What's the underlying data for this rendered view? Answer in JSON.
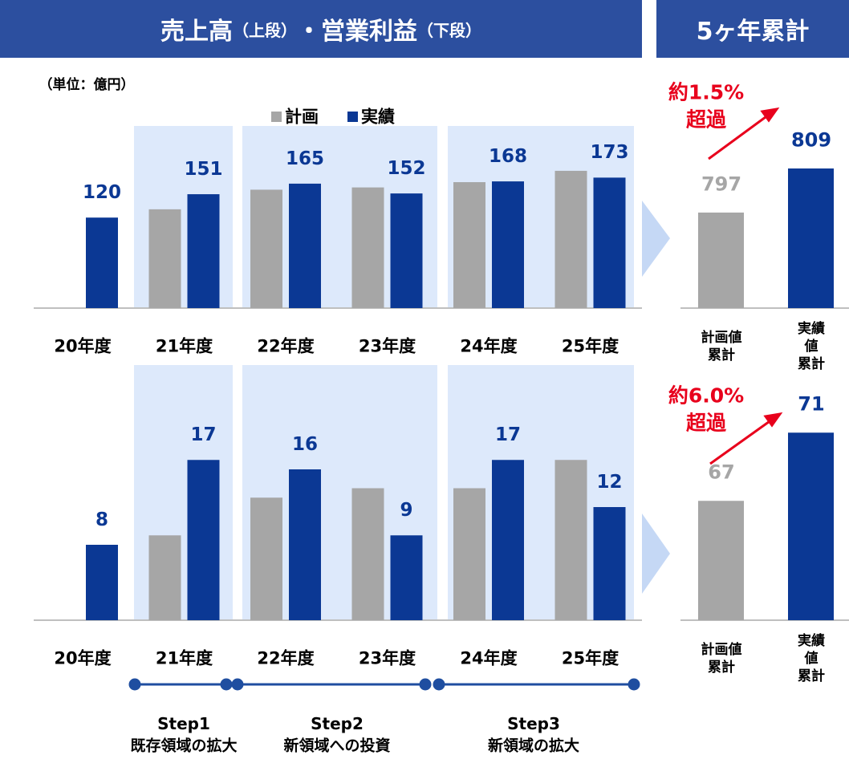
{
  "header": {
    "title_parts": [
      "売上高",
      "（上段）",
      "・営業利益",
      "（下段）"
    ],
    "side_title": "5ヶ年累計",
    "unit": "（単位：億円）"
  },
  "chart_data": [
    {
      "type": "grouped_bar",
      "categories": [
        "20年度",
        "21年度",
        "22年度",
        "23年度",
        "24年度",
        "25年度"
      ],
      "series": [
        {
          "name": "計画",
          "color": "#a6a6a6",
          "values": [
            null,
            131,
            157,
            160,
            167,
            182
          ]
        },
        {
          "name": "実績",
          "color": "#0b3894",
          "values": [
            120,
            151,
            165,
            152,
            168,
            173
          ],
          "data_labels": true
        }
      ],
      "ylim": [
        0,
        200
      ]
    },
    {
      "type": "grouped_bar",
      "categories": [
        "20年度",
        "21年度",
        "22年度",
        "23年度",
        "24年度",
        "25年度"
      ],
      "series": [
        {
          "name": "計画",
          "color": "#a6a6a6",
          "values": [
            null,
            9,
            13,
            14,
            14,
            17
          ]
        },
        {
          "name": "実績",
          "color": "#0b3894",
          "values": [
            8,
            17,
            16,
            9,
            17,
            12
          ],
          "data_labels": true
        }
      ],
      "ylim": [
        0,
        20
      ]
    },
    {
      "type": "bar",
      "categories": [
        "計画値\n累計",
        "実績値\n累計"
      ],
      "values": [
        797,
        809
      ],
      "colors": [
        "#a6a6a6",
        "#0b3894"
      ],
      "ylim": [
        771,
        840
      ],
      "annotation": "約1.5%\n超過"
    },
    {
      "type": "bar",
      "categories": [
        "計画値\n累計",
        "実績値\n累計"
      ],
      "values": [
        67,
        71
      ],
      "colors": [
        "#a6a6a6",
        "#0b3894"
      ],
      "ylim": [
        60,
        72
      ],
      "annotation": "約6.0%\n超過"
    }
  ],
  "steps": [
    {
      "label": "Step1",
      "desc": "既存領域の拡大"
    },
    {
      "label": "Step2",
      "desc": "新領域への投資"
    },
    {
      "label": "Step3",
      "desc": "新領域の拡大"
    }
  ]
}
